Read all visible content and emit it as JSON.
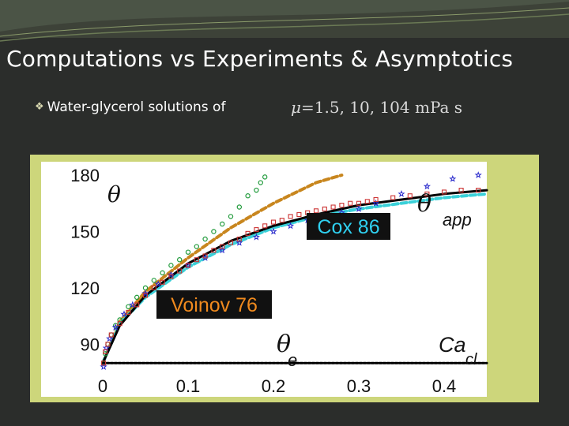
{
  "slide": {
    "title": "Computations vs Experiments & Asymptotics",
    "bullet_text": "Water-glycerol solutions of",
    "mu_symbol": "μ",
    "mu_values": "=1.5, 10, 104 mPa s"
  },
  "chart_data": {
    "type": "scatter",
    "title": "",
    "xlim": [
      0,
      0.45
    ],
    "ylim": [
      78,
      180
    ],
    "x_ticks": [
      "0",
      "0.1",
      "0.2",
      "0.3",
      "0.4"
    ],
    "y_ticks": [
      "180",
      "150",
      "120",
      "90"
    ],
    "grid": false,
    "series": [
      {
        "kind": "points",
        "marker": "circle",
        "color": "#1f9a3a",
        "x": [
          0.001,
          0.003,
          0.006,
          0.01,
          0.015,
          0.02,
          0.03,
          0.04,
          0.05,
          0.06,
          0.07,
          0.08,
          0.09,
          0.1,
          0.11,
          0.12,
          0.13,
          0.14,
          0.15,
          0.16,
          0.17,
          0.18,
          0.185,
          0.19
        ],
        "y": [
          80,
          85,
          90,
          95,
          100,
          103,
          110,
          115,
          120,
          124,
          128,
          132,
          135,
          139,
          142,
          146,
          150,
          154,
          158,
          163,
          169,
          172,
          176,
          179
        ]
      },
      {
        "kind": "points",
        "marker": "star",
        "color": "#2a2acc",
        "x": [
          0.001,
          0.004,
          0.008,
          0.015,
          0.025,
          0.035,
          0.05,
          0.065,
          0.08,
          0.1,
          0.12,
          0.14,
          0.16,
          0.18,
          0.2,
          0.22,
          0.24,
          0.26,
          0.28,
          0.3,
          0.32,
          0.35,
          0.38,
          0.41,
          0.44
        ],
        "y": [
          78,
          88,
          93,
          99,
          106,
          111,
          117,
          122,
          127,
          132,
          136,
          140,
          144,
          147,
          150,
          153,
          156,
          158,
          160,
          162,
          165,
          170,
          174,
          178,
          180
        ]
      },
      {
        "kind": "points",
        "marker": "square",
        "color": "#cc3333",
        "x": [
          0.001,
          0.003,
          0.006,
          0.01,
          0.02,
          0.03,
          0.04,
          0.05,
          0.06,
          0.07,
          0.08,
          0.09,
          0.1,
          0.11,
          0.12,
          0.13,
          0.14,
          0.15,
          0.16,
          0.17,
          0.18,
          0.19,
          0.2,
          0.21,
          0.22,
          0.23,
          0.24,
          0.25,
          0.26,
          0.27,
          0.28,
          0.29,
          0.3,
          0.31,
          0.32,
          0.34,
          0.36,
          0.38,
          0.4,
          0.42,
          0.44
        ],
        "y": [
          80,
          86,
          90,
          95,
          101,
          107,
          111,
          116,
          120,
          123,
          126,
          129,
          132,
          135,
          137,
          140,
          142,
          144,
          146,
          149,
          151,
          153,
          155,
          156,
          158,
          159,
          160,
          161,
          162,
          163,
          164,
          165,
          165,
          166,
          167,
          168,
          169,
          170,
          171,
          172,
          172
        ]
      },
      {
        "kind": "line",
        "style": "dashed",
        "color": "#c8861e",
        "x": [
          0.0,
          0.02,
          0.05,
          0.1,
          0.15,
          0.2,
          0.25,
          0.28
        ],
        "y": [
          80,
          102,
          118,
          136,
          152,
          165,
          176,
          180
        ]
      },
      {
        "kind": "line",
        "style": "dashed",
        "color": "#3ad0d8",
        "x": [
          0.0,
          0.02,
          0.05,
          0.1,
          0.15,
          0.2,
          0.25,
          0.3,
          0.35,
          0.4,
          0.45
        ],
        "y": [
          80,
          101,
          115,
          131,
          143,
          152,
          158,
          162,
          165,
          168,
          170
        ]
      },
      {
        "kind": "line",
        "style": "solid",
        "color": "#000000",
        "x": [
          0.0,
          0.02,
          0.05,
          0.1,
          0.15,
          0.2,
          0.25,
          0.3,
          0.35,
          0.4,
          0.45
        ],
        "y": [
          80,
          100,
          116,
          133,
          145,
          153,
          159,
          164,
          167,
          170,
          172
        ]
      },
      {
        "kind": "line",
        "style": "dotted",
        "color": "#000000",
        "x": [
          0.0,
          0.45
        ],
        "y": [
          80,
          80
        ]
      }
    ],
    "annotations": {
      "theta": "θ",
      "theta_app": "θ",
      "theta_app_sub": "app",
      "cox": "Cox 86",
      "voinov": "Voinov 76",
      "theta_e": "θ",
      "theta_e_sub": "e",
      "ca": "Ca",
      "ca_sub": "cl"
    },
    "colors": {
      "frame": "#cdd67b",
      "label_box": "#111111",
      "cox_text": "#2fd0f0",
      "voinov_text": "#f08a1e"
    }
  }
}
